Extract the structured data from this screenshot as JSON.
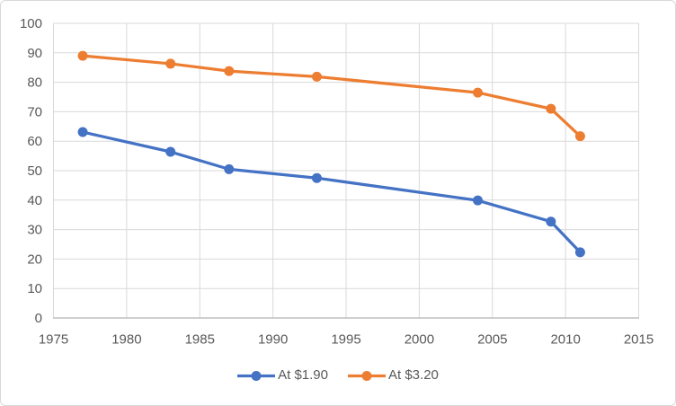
{
  "chart_data": {
    "type": "line",
    "title": "",
    "xlabel": "",
    "ylabel": "",
    "x": [
      1977,
      1983,
      1987,
      1993,
      2004,
      2009,
      2011
    ],
    "series": [
      {
        "name": "At $1.90",
        "color": "#4472C4",
        "values": [
          63.1,
          56.4,
          50.5,
          47.5,
          39.9,
          32.7,
          22.3
        ]
      },
      {
        "name": "At $3.20",
        "color": "#ED7D31",
        "values": [
          89.0,
          86.3,
          83.8,
          81.9,
          76.5,
          71.0,
          61.7
        ]
      }
    ],
    "xlim": [
      1975,
      2015
    ],
    "ylim": [
      0,
      100
    ],
    "x_ticks": [
      1975,
      1980,
      1985,
      1990,
      1995,
      2000,
      2005,
      2010,
      2015
    ],
    "y_ticks": [
      0,
      10,
      20,
      30,
      40,
      50,
      60,
      70,
      80,
      90,
      100
    ],
    "grid": true,
    "legend_position": "bottom",
    "marker": "circle",
    "colors": {
      "gridline": "#D9D9D9",
      "axis_line": "#BFBFBF",
      "tick_text": "#595959",
      "border": "#D9D9D9",
      "background": "#FFFFFF"
    }
  },
  "legend": {
    "items": [
      {
        "label": "At $1.90"
      },
      {
        "label": "At $3.20"
      }
    ]
  }
}
